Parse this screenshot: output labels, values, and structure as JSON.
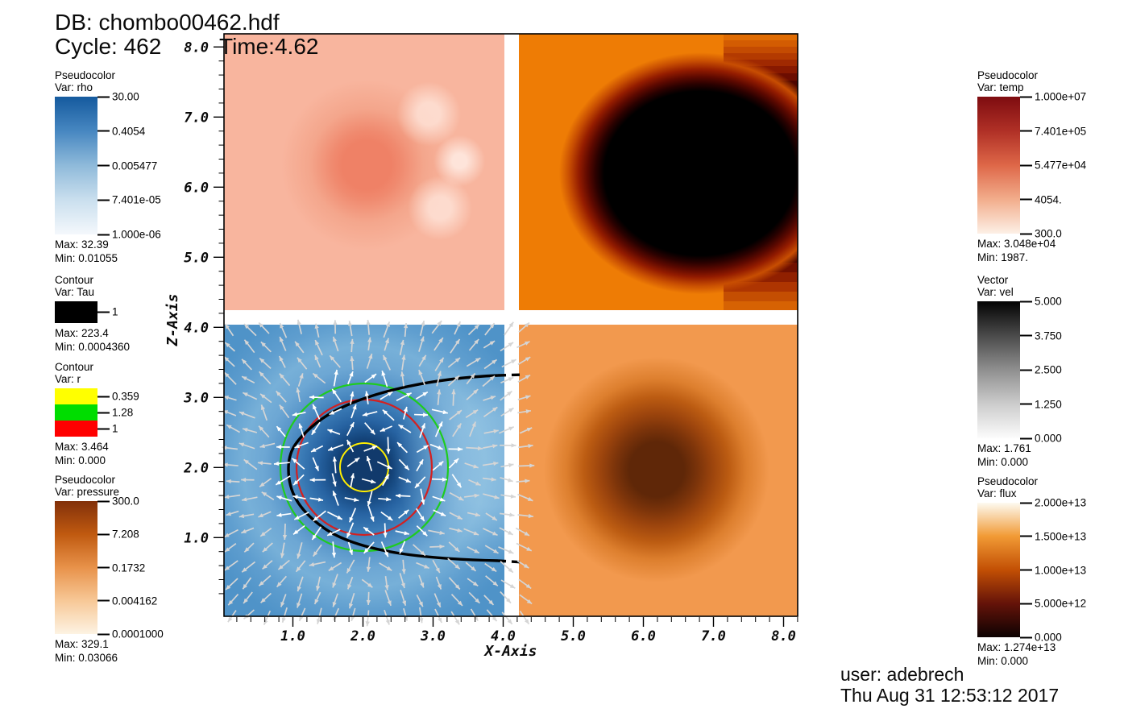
{
  "header": {
    "db": "DB: chombo00462.hdf",
    "cycle": "Cycle: 462",
    "time": "Time:4.62"
  },
  "footer": {
    "user": "user: adebrech",
    "datetime": "Thu Aug 31 12:53:12 2017"
  },
  "axes": {
    "x": {
      "label": "X-Axis",
      "ticks": [
        "1.0",
        "2.0",
        "3.0",
        "4.0",
        "5.0",
        "6.0",
        "7.0",
        "8.0"
      ]
    },
    "z": {
      "label": "Z-Axis",
      "ticks": [
        "1.0",
        "2.0",
        "3.0",
        "4.0",
        "5.0",
        "6.0",
        "7.0",
        "8.0"
      ]
    }
  },
  "legends": [
    {
      "kind": "Pseudocolor",
      "var_label": "Var: rho",
      "ticks": [
        "30.00",
        "0.4054",
        "0.005477",
        "7.401e-05",
        "1.000e-06"
      ],
      "max": "Max: 32.39",
      "min": "Min: 0.01055",
      "colors": [
        "#155a9e",
        "#4787c1",
        "#8fbada",
        "#cadfee",
        "#f4f8fc"
      ]
    },
    {
      "kind": "Contour",
      "var_label": "Var: Tau",
      "entries": [
        {
          "value": "1",
          "color": "#000000"
        }
      ],
      "max": "Max: 223.4",
      "min": "Min: 0.0004360"
    },
    {
      "kind": "Contour",
      "var_label": "Var: r",
      "entries": [
        {
          "value": "0.359",
          "color": "#ffff00"
        },
        {
          "value": "1.28",
          "color": "#00dd00"
        },
        {
          "value": "1",
          "color": "#ff0000"
        }
      ],
      "max": "Max: 3.464",
      "min": "Min: 0.000"
    },
    {
      "kind": "Pseudocolor",
      "var_label": "Var: pressure",
      "ticks": [
        "300.0",
        "7.208",
        "0.1732",
        "0.004162",
        "0.0001000"
      ],
      "max": "Max: 329.1",
      "min": "Min: 0.03066",
      "colors": [
        "#82300a",
        "#c05a10",
        "#e8924a",
        "#f7c897",
        "#fdf3e3"
      ]
    },
    {
      "kind": "Pseudocolor",
      "var_label": "Var: temp",
      "ticks": [
        "1.000e+07",
        "7.401e+05",
        "5.477e+04",
        "4054.",
        "300.0"
      ],
      "max": "Max: 3.048e+04",
      "min": "Min: 1987.",
      "colors": [
        "#7e0c10",
        "#b03026",
        "#de6748",
        "#f2ad8c",
        "#fdf0e6"
      ]
    },
    {
      "kind": "Vector",
      "var_label": "Var: vel",
      "ticks": [
        "5.000",
        "3.750",
        "2.500",
        "1.250",
        "0.000"
      ],
      "max": "Max: 1.761",
      "min": "Min: 0.000",
      "colors": [
        "#030303",
        "#4a4a4a",
        "#8f8f8f",
        "#cccccc",
        "#fcfcfc"
      ]
    },
    {
      "kind": "Pseudocolor",
      "var_label": "Var: flux",
      "ticks": [
        "2.000e+13",
        "1.500e+13",
        "1.000e+13",
        "5.000e+12",
        "0.000"
      ],
      "max": "Max: 1.274e+13",
      "min": "Min: 0.000",
      "colors": [
        "#fdfaf1",
        "#f19a35",
        "#c24f04",
        "#641309",
        "#0d0202"
      ]
    }
  ],
  "chart_data": {
    "type": "heatmap",
    "title": "DB: chombo00462.hdf",
    "cycle": 462,
    "time": 4.62,
    "layout": "2x2 simulation quadrants sharing one coordinate frame; white gaps between quadrants at x=4.0-4.2 and z=4.0-4.2",
    "x_axis": {
      "label": "X-Axis",
      "range": [
        0,
        8.2
      ],
      "major_ticks": [
        1.0,
        2.0,
        3.0,
        4.0,
        5.0,
        6.0,
        7.0,
        8.0
      ]
    },
    "z_axis": {
      "label": "Z-Axis",
      "range": [
        0,
        8.2
      ],
      "major_ticks": [
        1.0,
        2.0,
        3.0,
        4.0,
        5.0,
        6.0,
        7.0,
        8.0
      ]
    },
    "panels": [
      {
        "quadrant": "top-left",
        "x_range": [
          0,
          4
        ],
        "z_range": [
          4.2,
          8.2
        ],
        "plot": "Pseudocolor rho",
        "appearance": "pale salmon field with a diffuse redder circular blob centered near x=2.0, z=6.2 and faint lighter arcs to its right",
        "base_color": "#f8b59e",
        "blob_color": "#ef8166"
      },
      {
        "quadrant": "top-right",
        "x_range": [
          4.2,
          8.2
        ],
        "z_range": [
          4.2,
          8.2
        ],
        "plot": "Pseudocolor temp",
        "appearance": "bright orange field with a large saturated black rounded region filling the right half, centered near x=6.6, z=6.0, surrounded by a dark-red ring and pixelated horizontal banding along its upper-right and lower-right edges",
        "base_color": "#ee7c05",
        "blob_color": "#000000"
      },
      {
        "quadrant": "bottom-left",
        "x_range": [
          0,
          4
        ],
        "z_range": [
          0,
          4
        ],
        "plot": "Pseudocolor rho (blue) + Vector vel arrows + Contour Tau (black) + Contour r (yellow/green/red)",
        "appearance": "blue field darkening to a navy core at x=2.0, z=2.0; yellow contour circle r~0.35, red contour r~1.0 and green contour r~1.2 around the core; black Tau contour forms a C-shaped bow opening to the right; white/grey velocity arrows point radially outward, chaotic near the core",
        "base_color": "#4f93c8",
        "core_color": "#113a6c",
        "contour_colors": {
          "Tau": "#000000",
          "r": [
            "#ffff00",
            "#00dd00",
            "#ff0000"
          ]
        }
      },
      {
        "quadrant": "bottom-right",
        "x_range": [
          4.2,
          8.2
        ],
        "z_range": [
          0,
          4
        ],
        "plot": "Pseudocolor flux",
        "appearance": "light orange field with a diffuse dark-brown circular blob centered near x=6.2, z=2.1",
        "base_color": "#f2994e",
        "blob_color": "#5f2708"
      }
    ],
    "legend_note": "colorbar scales, tick values and max/min readouts are given in the top-level legends array"
  }
}
